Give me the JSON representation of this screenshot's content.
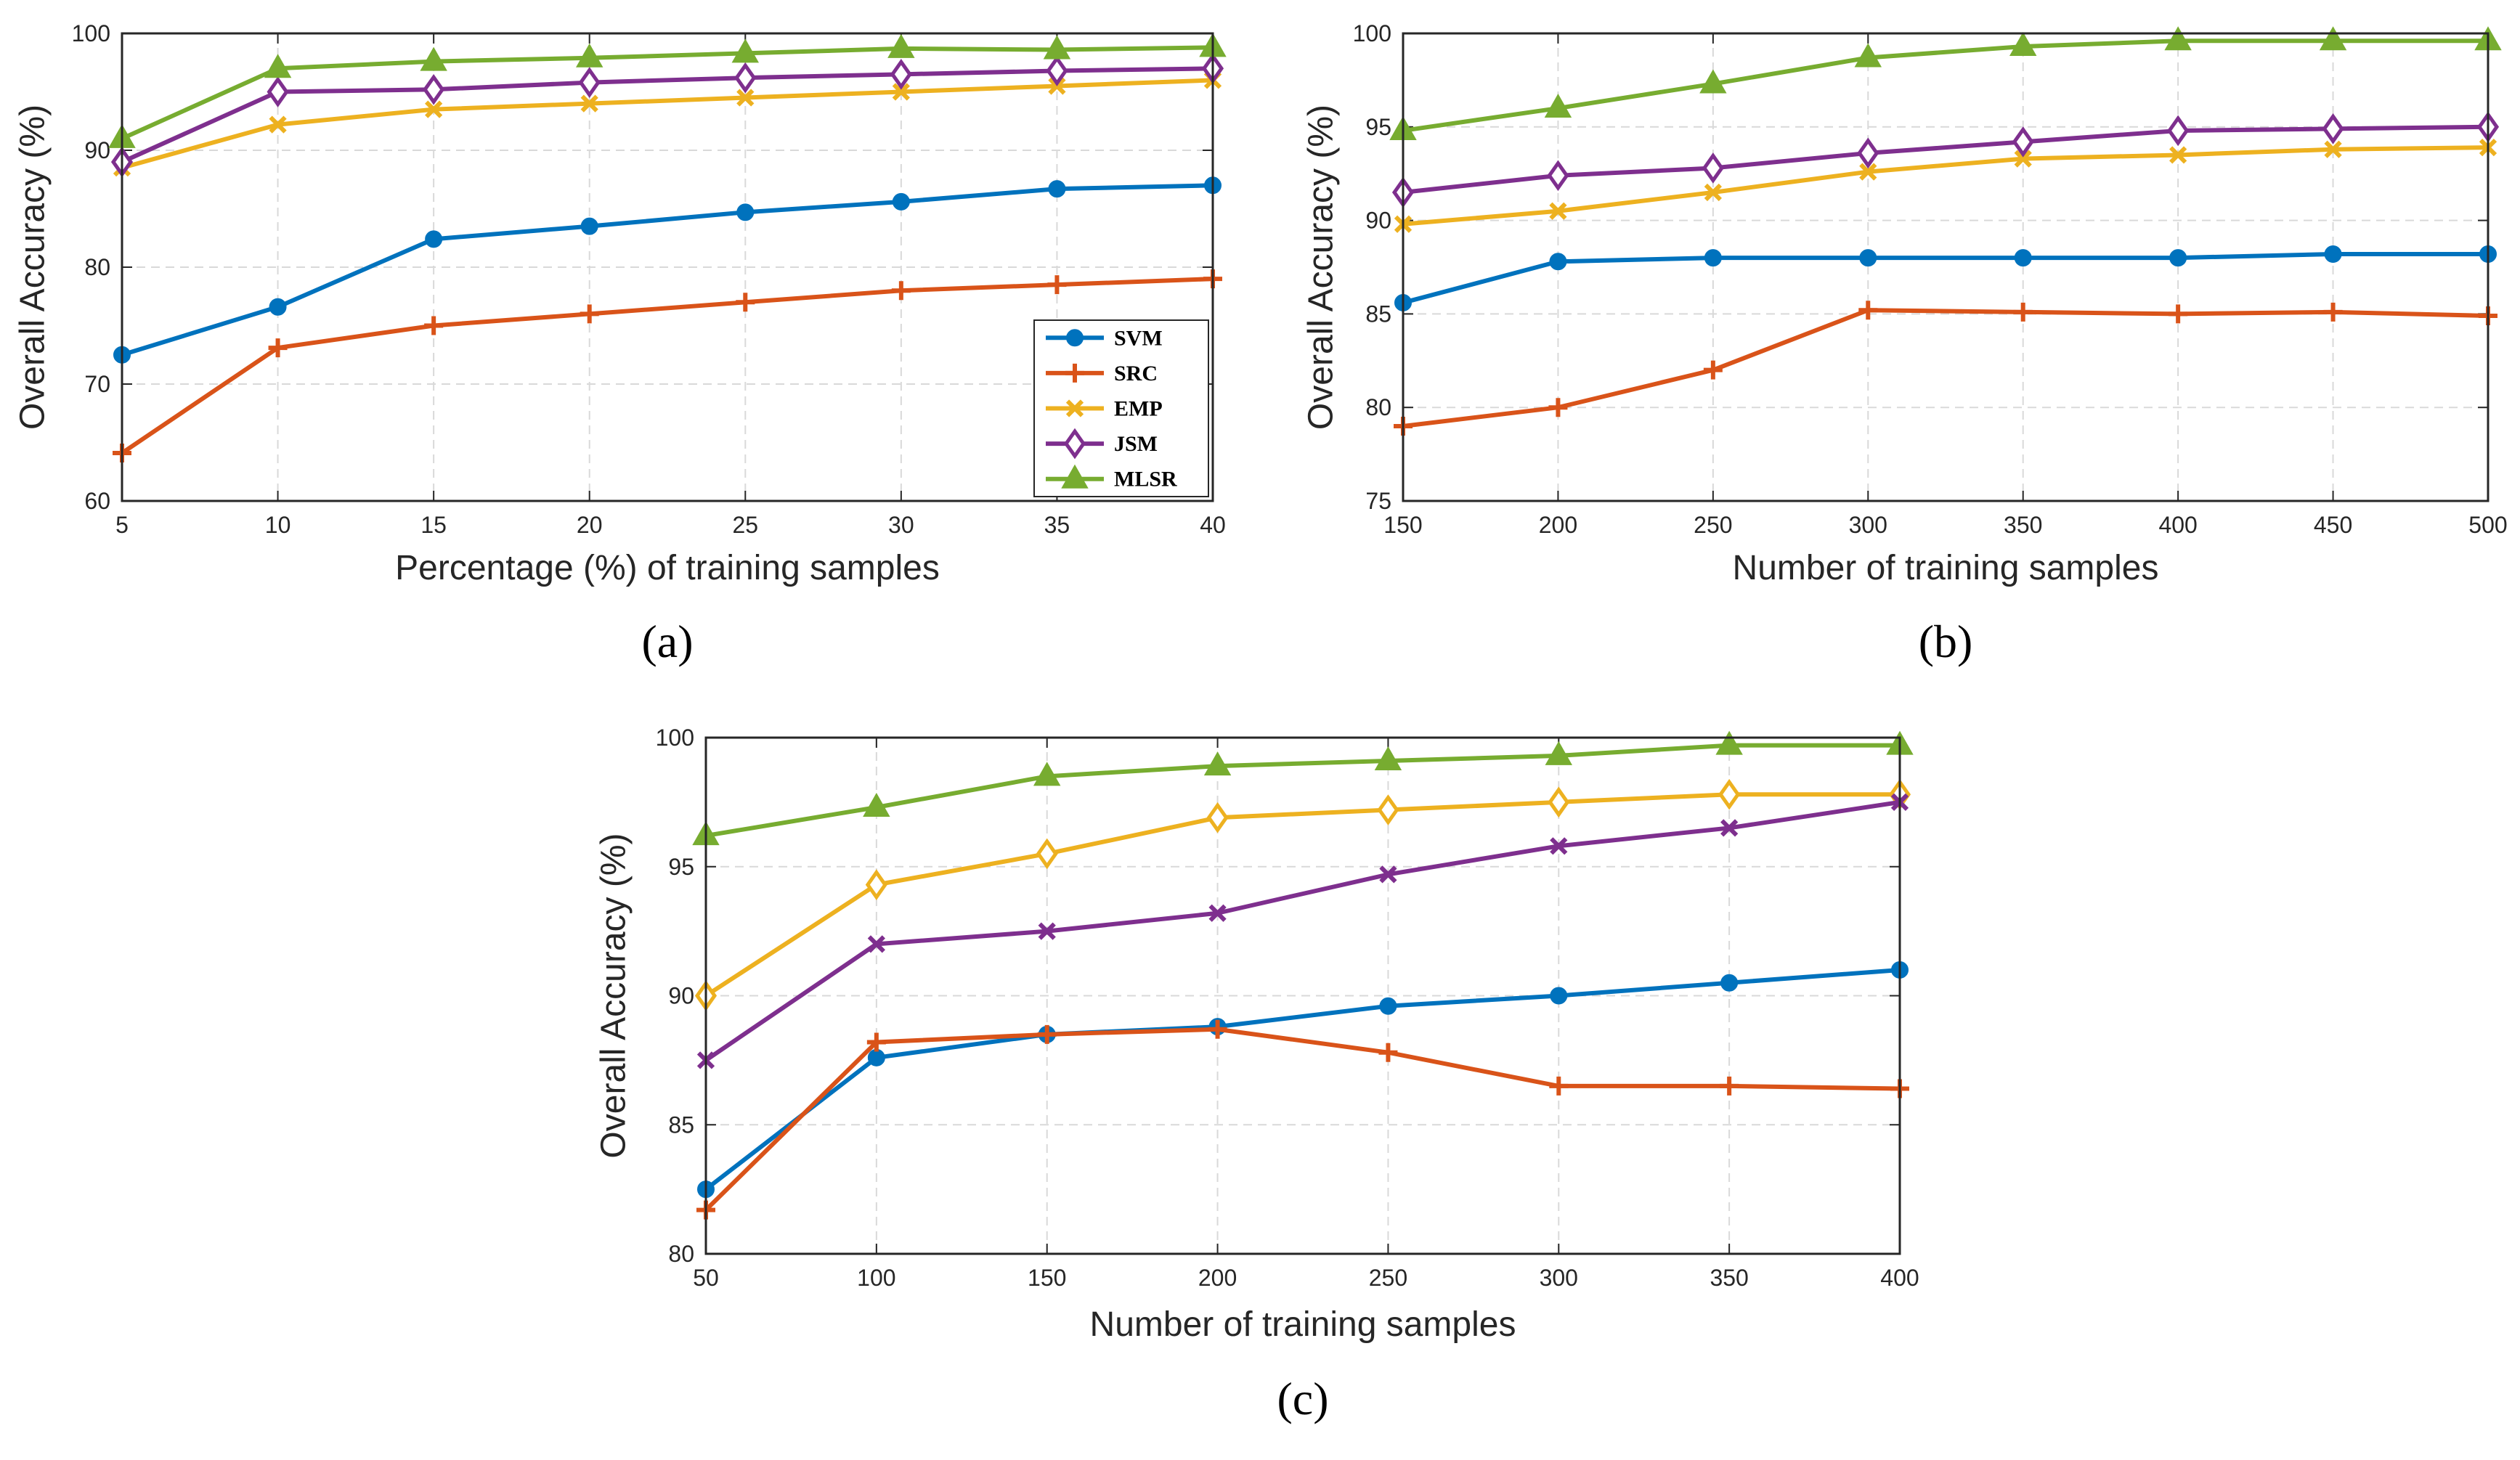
{
  "colors": {
    "SVM": "#0072BD",
    "SRC": "#D95319",
    "EMP": "#EDB120",
    "JSM": "#7E2F8E",
    "MLSR": "#77AC30"
  },
  "legend": [
    "SVM",
    "SRC",
    "EMP",
    "JSM",
    "MLSR"
  ],
  "chart_data": [
    {
      "type": "line",
      "caption": "(a)",
      "xlabel": "Percentage (%) of training samples",
      "ylabel": "Overall Accuracy (%)",
      "x": [
        5,
        10,
        15,
        20,
        25,
        30,
        35,
        40
      ],
      "xticks": [
        "5",
        "10",
        "15",
        "20",
        "25",
        "30",
        "35",
        "40"
      ],
      "yticks": [
        "60",
        "70",
        "80",
        "90",
        "100"
      ],
      "xlim": [
        5,
        40
      ],
      "ylim": [
        60,
        100
      ],
      "grid": true,
      "legend_position": "bottom-right",
      "series": [
        {
          "name": "SVM",
          "marker": "circle",
          "values": [
            72.5,
            76.6,
            82.4,
            83.5,
            84.7,
            85.6,
            86.7,
            87.0
          ]
        },
        {
          "name": "SRC",
          "marker": "plus",
          "values": [
            64.1,
            73.1,
            75.0,
            76.0,
            77.0,
            78.0,
            78.5,
            79.0
          ]
        },
        {
          "name": "EMP",
          "marker": "x",
          "values": [
            88.5,
            92.2,
            93.5,
            94.0,
            94.5,
            95.0,
            95.5,
            96.0
          ]
        },
        {
          "name": "JSM",
          "marker": "diamond",
          "values": [
            89.0,
            95.0,
            95.2,
            95.8,
            96.2,
            96.5,
            96.8,
            97.0
          ]
        },
        {
          "name": "MLSR",
          "marker": "triangle",
          "values": [
            91.0,
            97.0,
            97.6,
            97.9,
            98.3,
            98.7,
            98.6,
            98.8
          ]
        }
      ]
    },
    {
      "type": "line",
      "caption": "(b)",
      "xlabel": "Number of training samples",
      "ylabel": "Overall Accuracy (%)",
      "x": [
        150,
        200,
        250,
        300,
        350,
        400,
        450,
        500
      ],
      "xticks": [
        "150",
        "200",
        "250",
        "300",
        "350",
        "400",
        "450",
        "500"
      ],
      "yticks": [
        "75",
        "80",
        "85",
        "90",
        "95",
        "100"
      ],
      "xlim": [
        150,
        500
      ],
      "ylim": [
        75,
        100
      ],
      "grid": true,
      "series": [
        {
          "name": "SVM",
          "marker": "circle",
          "values": [
            85.6,
            87.8,
            88.0,
            88.0,
            88.0,
            88.0,
            88.2,
            88.2
          ]
        },
        {
          "name": "SRC",
          "marker": "plus",
          "values": [
            79.0,
            80.0,
            82.0,
            85.2,
            85.1,
            85.0,
            85.1,
            84.9
          ]
        },
        {
          "name": "EMP",
          "marker": "x",
          "values": [
            89.8,
            90.5,
            91.5,
            92.6,
            93.3,
            93.5,
            93.8,
            93.9
          ]
        },
        {
          "name": "JSM",
          "marker": "diamond",
          "values": [
            91.5,
            92.4,
            92.8,
            93.6,
            94.2,
            94.8,
            94.9,
            95.0
          ]
        },
        {
          "name": "MLSR",
          "marker": "triangle",
          "values": [
            94.8,
            96.0,
            97.3,
            98.7,
            99.3,
            99.6,
            99.6,
            99.6
          ]
        }
      ]
    },
    {
      "type": "line",
      "caption": "(c)",
      "xlabel": "Number of training samples",
      "ylabel": "Overall Accuracy (%)",
      "x": [
        50,
        100,
        150,
        200,
        250,
        300,
        350,
        400
      ],
      "xticks": [
        "50",
        "100",
        "150",
        "200",
        "250",
        "300",
        "350",
        "400"
      ],
      "yticks": [
        "80",
        "85",
        "90",
        "95",
        "100"
      ],
      "xlim": [
        50,
        400
      ],
      "ylim": [
        80,
        100
      ],
      "grid": true,
      "series": [
        {
          "name": "SVM",
          "marker": "circle",
          "values": [
            82.5,
            87.6,
            88.5,
            88.8,
            89.6,
            90.0,
            90.5,
            91.0
          ]
        },
        {
          "name": "SRC",
          "marker": "plus",
          "values": [
            81.7,
            88.2,
            88.5,
            88.7,
            87.8,
            86.5,
            86.5,
            86.4
          ]
        },
        {
          "name": "EMP",
          "marker": "diamond",
          "values": [
            90.0,
            94.3,
            95.5,
            96.9,
            97.2,
            97.5,
            97.8,
            97.8
          ]
        },
        {
          "name": "JSM",
          "marker": "x",
          "values": [
            87.5,
            92.0,
            92.5,
            93.2,
            94.7,
            95.8,
            96.5,
            97.5
          ]
        },
        {
          "name": "MLSR",
          "marker": "triangle",
          "values": [
            96.2,
            97.3,
            98.5,
            98.9,
            99.1,
            99.3,
            99.7,
            99.7
          ]
        }
      ]
    }
  ]
}
